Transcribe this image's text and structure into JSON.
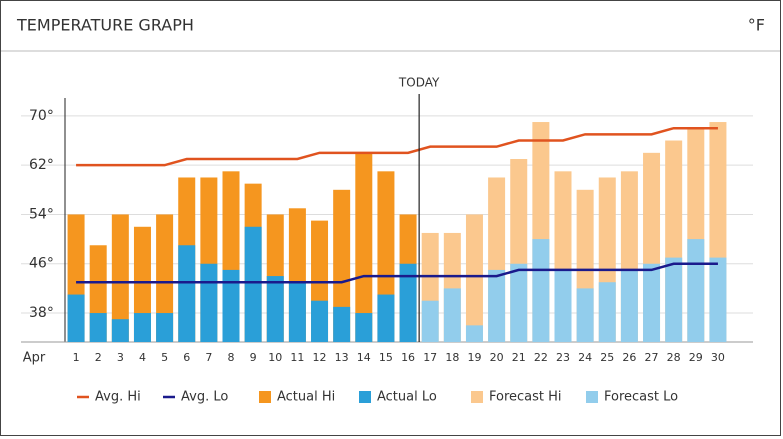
{
  "chart_data": {
    "type": "bar",
    "title": "TEMPERATURE GRAPH",
    "unit": "°F",
    "x_label": "Apr",
    "today": {
      "label": "TODAY",
      "category": "17"
    },
    "categories": [
      "1",
      "2",
      "3",
      "4",
      "5",
      "6",
      "7",
      "8",
      "9",
      "10",
      "11",
      "12",
      "13",
      "14",
      "15",
      "16",
      "17",
      "18",
      "19",
      "20",
      "21",
      "22",
      "23",
      "24",
      "25",
      "26",
      "27",
      "28",
      "29",
      "30"
    ],
    "ylim": [
      33.3,
      72.9
    ],
    "yticks": [
      {
        "value": 38,
        "label": "38°"
      },
      {
        "value": 46,
        "label": "46°"
      },
      {
        "value": 54,
        "label": "54°"
      },
      {
        "value": 62,
        "label": "62°"
      },
      {
        "value": 70,
        "label": "70°"
      }
    ],
    "grid": true,
    "series": [
      {
        "name": "Avg. Hi",
        "type": "line",
        "color": "#e0531f",
        "values": [
          62,
          62,
          62,
          62,
          62,
          63,
          63,
          63,
          63,
          63,
          63,
          64,
          64,
          64,
          64,
          64,
          65,
          65,
          65,
          65,
          66,
          66,
          66,
          67,
          67,
          67,
          67,
          68,
          68,
          68
        ]
      },
      {
        "name": "Avg. Lo",
        "type": "line",
        "color": "#1a1a8c",
        "values": [
          43,
          43,
          43,
          43,
          43,
          43,
          43,
          43,
          43,
          43,
          43,
          43,
          43,
          44,
          44,
          44,
          44,
          44,
          44,
          44,
          45,
          45,
          45,
          45,
          45,
          45,
          45,
          46,
          46,
          46
        ]
      },
      {
        "name": "Actual Hi",
        "type": "bar",
        "color": "#f5961f",
        "values": [
          54,
          49,
          54,
          52,
          54,
          60,
          60,
          61,
          59,
          54,
          55,
          53,
          58,
          64,
          61,
          54,
          null,
          null,
          null,
          null,
          null,
          null,
          null,
          null,
          null,
          null,
          null,
          null,
          null,
          null
        ]
      },
      {
        "name": "Actual Lo",
        "type": "bar",
        "color": "#2a9fd8",
        "values": [
          41,
          38,
          37,
          38,
          38,
          49,
          46,
          45,
          52,
          44,
          43,
          40,
          39,
          38,
          41,
          46,
          null,
          null,
          null,
          null,
          null,
          null,
          null,
          null,
          null,
          null,
          null,
          null,
          null,
          null
        ]
      },
      {
        "name": "Forecast Hi",
        "type": "bar",
        "color": "#fbc88e",
        "values": [
          null,
          null,
          null,
          null,
          null,
          null,
          null,
          null,
          null,
          null,
          null,
          null,
          null,
          null,
          null,
          null,
          51,
          51,
          54,
          60,
          63,
          69,
          61,
          58,
          60,
          61,
          64,
          66,
          68,
          69
        ]
      },
      {
        "name": "Forecast Lo",
        "type": "bar",
        "color": "#92cdec",
        "values": [
          null,
          null,
          null,
          null,
          null,
          null,
          null,
          null,
          null,
          null,
          null,
          null,
          null,
          null,
          null,
          null,
          40,
          42,
          36,
          45,
          46,
          50,
          45,
          42,
          43,
          45,
          46,
          47,
          50,
          47
        ]
      }
    ]
  }
}
